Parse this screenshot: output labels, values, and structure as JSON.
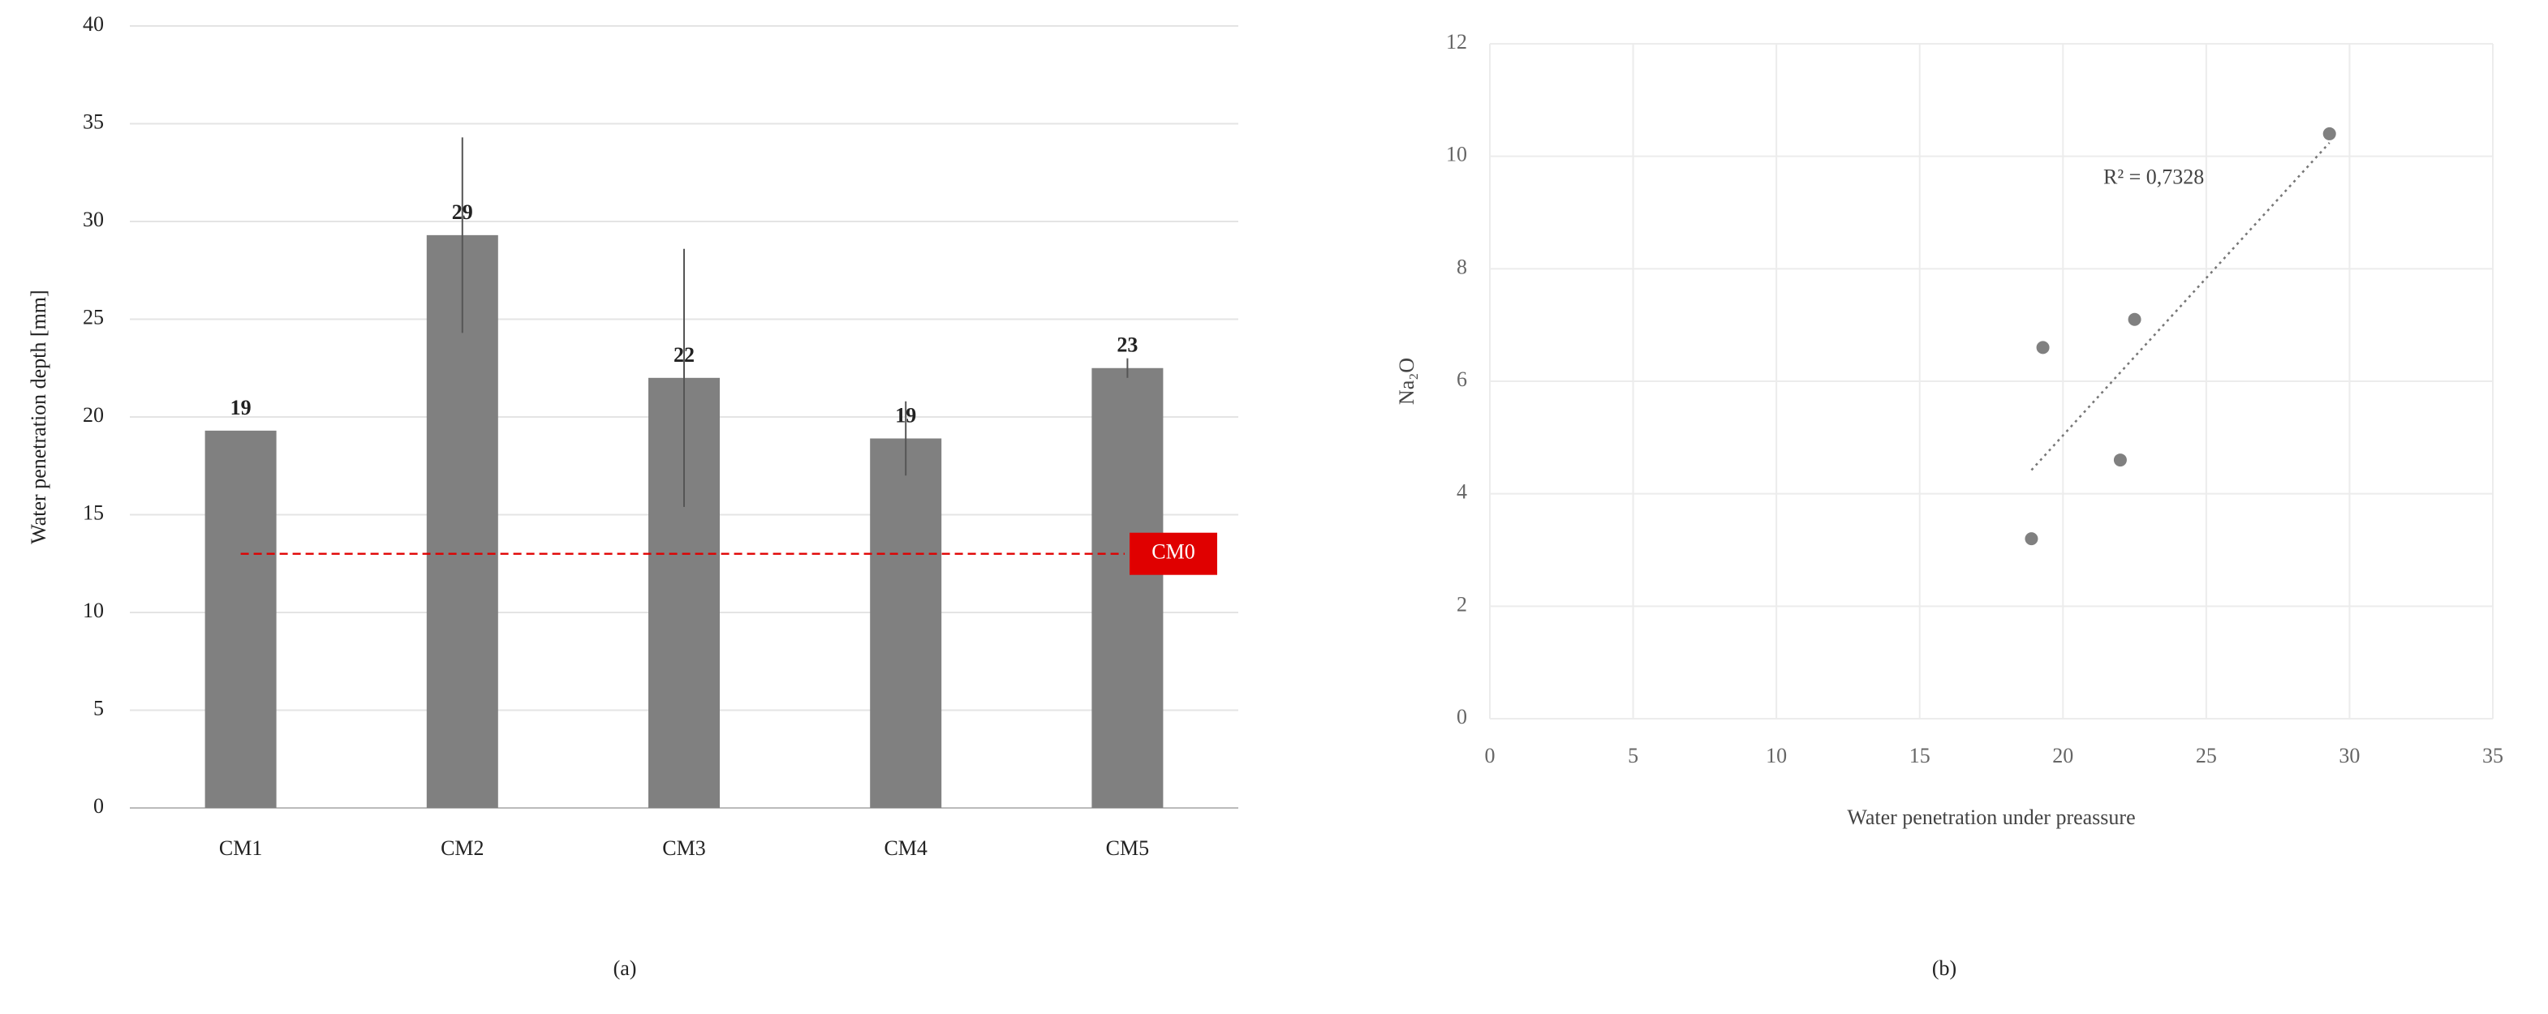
{
  "chart_data": [
    {
      "type": "bar",
      "caption": "(a)",
      "y_label": "Water penetration depth [mm]",
      "categories": [
        "CM1",
        "CM2",
        "CM3",
        "CM4",
        "CM5"
      ],
      "values": [
        19.3,
        29.3,
        22.0,
        18.9,
        22.5
      ],
      "value_labels": [
        "19",
        "29",
        "22",
        "19",
        "23"
      ],
      "errors": [
        0,
        5.0,
        6.6,
        1.9,
        0.5
      ],
      "color": "#808080",
      "ylim": [
        0,
        40
      ],
      "yticks": [
        0,
        5,
        10,
        15,
        20,
        25,
        30,
        35,
        40
      ],
      "grid": true,
      "reference_line": {
        "label": "CM0",
        "value": 13,
        "color": "#e00000"
      }
    },
    {
      "type": "scatter",
      "caption": "(b)",
      "x_label": "Water penetration under preassure",
      "y_label": "Na₂O",
      "x": [
        19.3,
        29.3,
        22.0,
        18.9,
        22.5
      ],
      "y": [
        6.6,
        10.4,
        4.6,
        3.2,
        7.1
      ],
      "color": "#808080",
      "xlim": [
        0,
        35
      ],
      "xticks": [
        0,
        5,
        10,
        15,
        20,
        25,
        30,
        35
      ],
      "ylim": [
        0,
        12
      ],
      "yticks": [
        0,
        2,
        4,
        6,
        8,
        10,
        12
      ],
      "grid": true,
      "trendline": {
        "type": "linear",
        "label": "R² = 0,7328"
      }
    }
  ]
}
